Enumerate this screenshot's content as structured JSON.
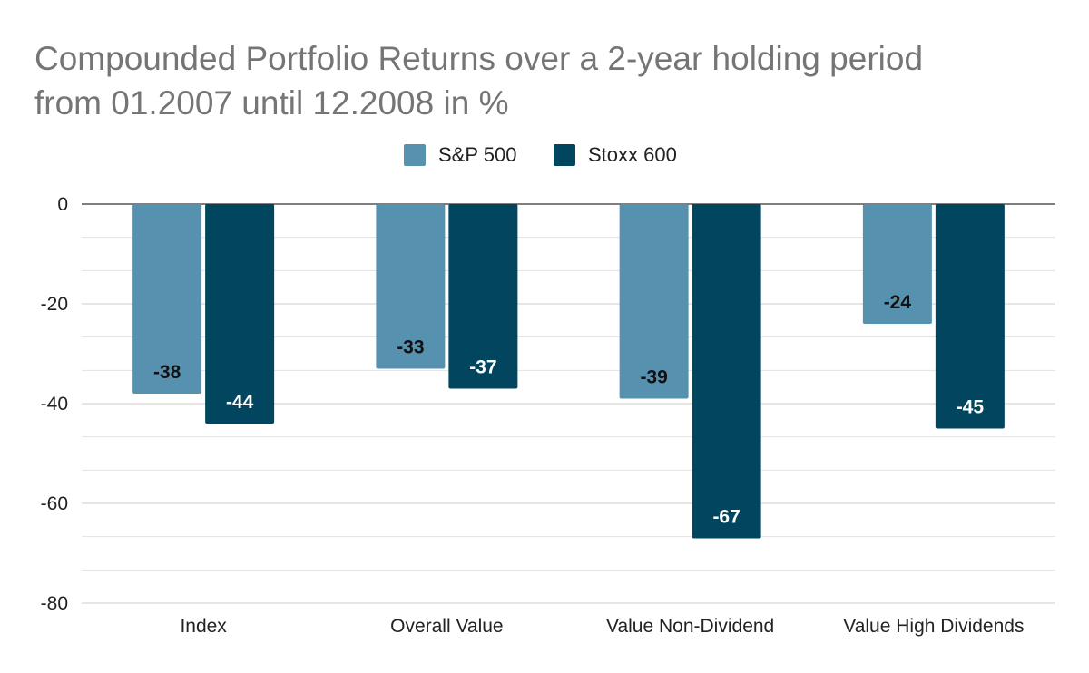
{
  "chart_data": {
    "type": "bar",
    "title_line1": "Compounded Portfolio Returns over a 2-year holding period",
    "title_line2": "from 01.2007 until 12.2008 in %",
    "categories": [
      "Index",
      "Overall Value",
      "Value Non-Dividend",
      "Value High Dividends"
    ],
    "series": [
      {
        "name": "S&P 500",
        "color": "#5791b0",
        "label_color": "#111111",
        "values": [
          -38,
          -33,
          -39,
          -24
        ]
      },
      {
        "name": "Stoxx 600",
        "color": "#01455f",
        "label_color": "#ffffff",
        "values": [
          -44,
          -37,
          -67,
          -45
        ]
      }
    ],
    "yticks": [
      "0",
      "-20",
      "-40",
      "-60",
      "-80"
    ],
    "ylim": [
      -80,
      0
    ],
    "legend_position": "top",
    "grid": true,
    "gridline_color": "#cccccc",
    "axis_color": "#333333"
  }
}
